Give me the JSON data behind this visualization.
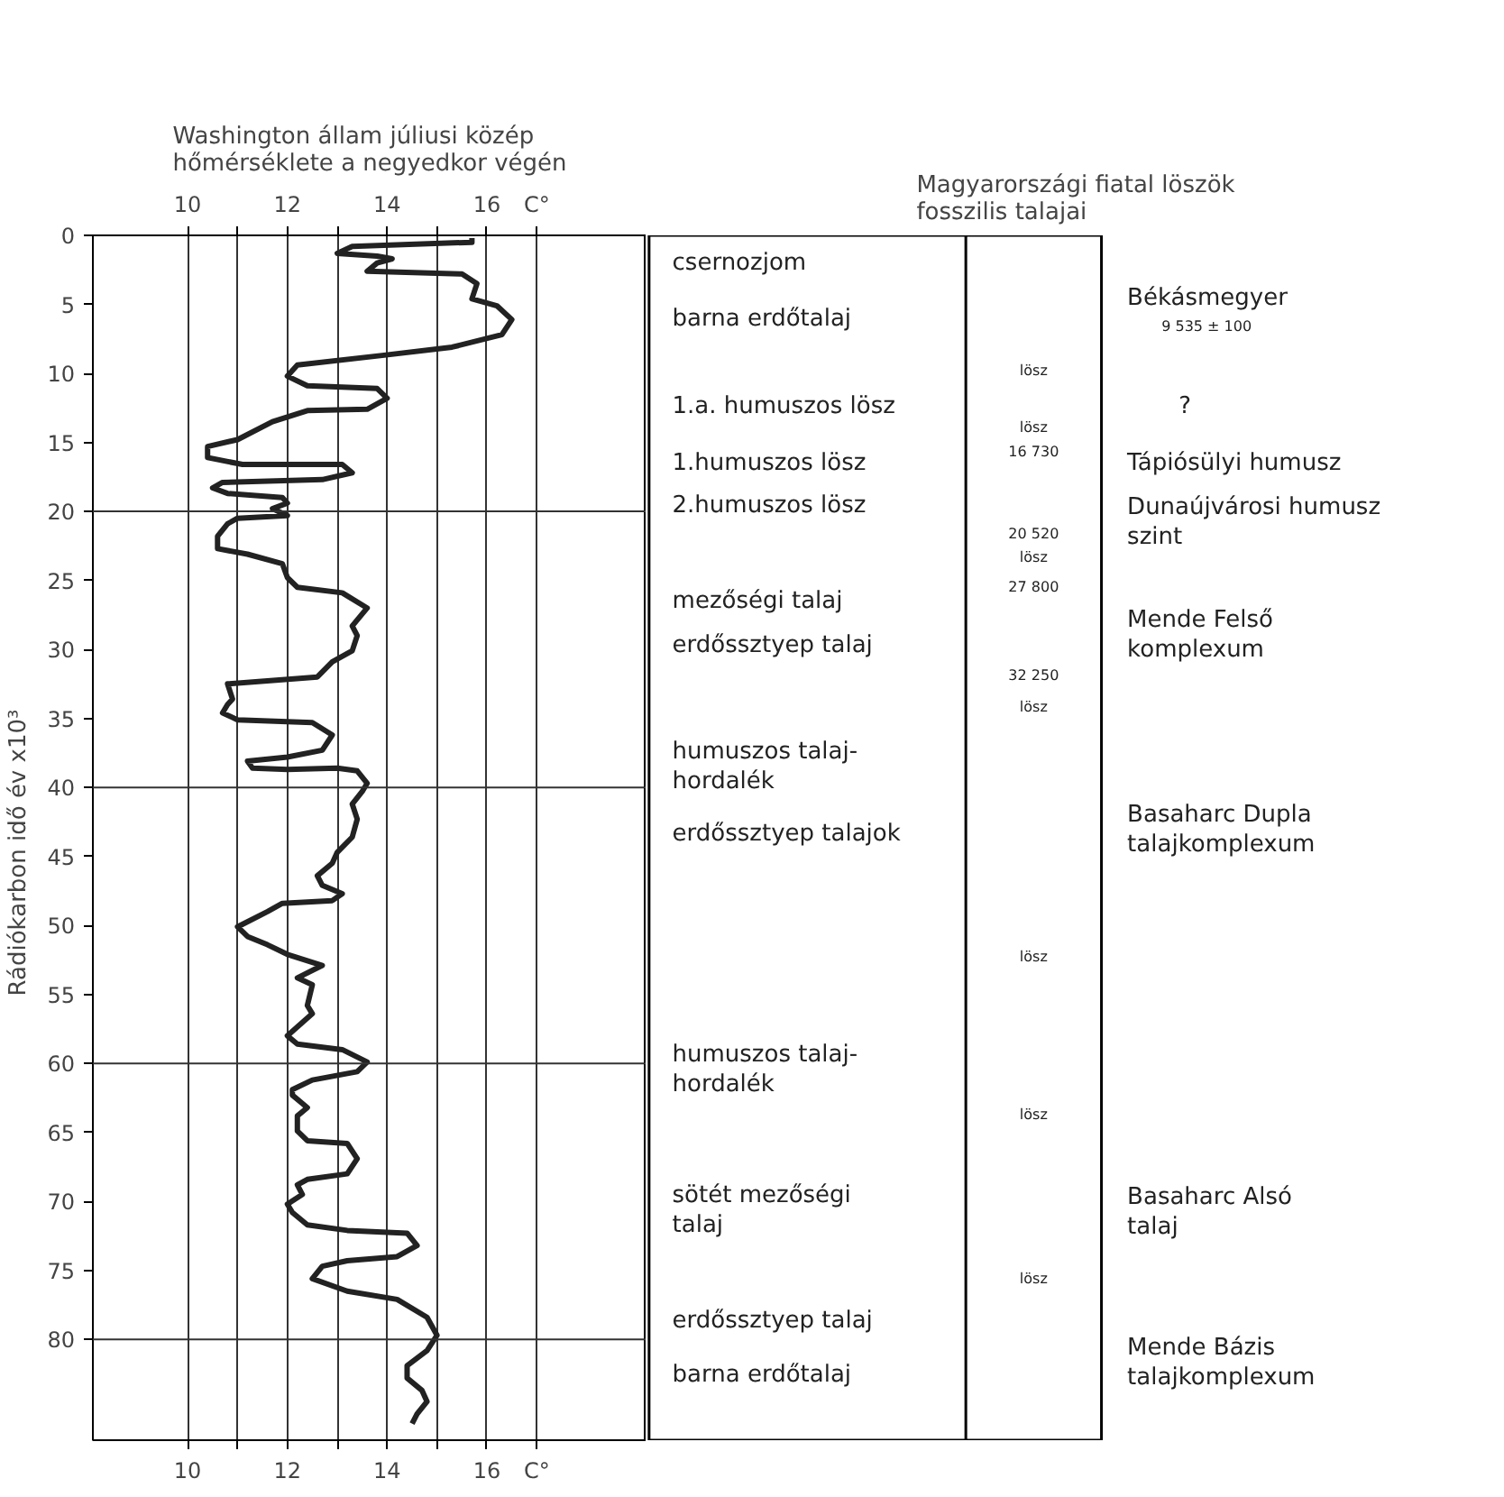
{
  "chart_data": [
    {
      "type": "line",
      "title": "Washington állam júliusi közép\nhőmérséklete a negyedkor végén",
      "ylabel": "Rádiókarbon idő     év x10³",
      "xlim": [
        8.1,
        19.2
      ],
      "ylim": [
        87.3,
        0
      ],
      "xticks": [
        10,
        {
          "value": 11,
          "label": null
        },
        12,
        {
          "value": 13,
          "label": null
        },
        14,
        {
          "value": 15,
          "label": null
        },
        16,
        {
          "value": 17,
          "label": "C°"
        }
      ],
      "x2lim": [
        8.1,
        19.2
      ],
      "x2ticks": [
        10,
        {
          "value": 11,
          "label": null
        },
        12,
        {
          "value": 13,
          "label": null
        },
        14,
        {
          "value": 15,
          "label": null
        },
        16,
        {
          "value": 17,
          "label": "C°"
        }
      ],
      "yticks": [
        0,
        5,
        10,
        15,
        20,
        25,
        30,
        35,
        40,
        45,
        50,
        55,
        60,
        65,
        70,
        75,
        80
      ],
      "grid": "x",
      "ref_lines": [
        {
          "axis": "y",
          "value": 20
        },
        {
          "axis": "y",
          "value": 40
        },
        {
          "axis": "y",
          "value": 60
        },
        {
          "axis": "y",
          "value": 80
        }
      ],
      "series": [
        {
          "color": "#222222",
          "x": [
            15.7,
            15.7,
            13.3,
            13.0,
            13.8,
            14.1,
            13.8,
            13.6,
            15.5,
            15.8,
            15.7,
            16.2,
            16.5,
            16.3,
            15.3,
            13.9,
            12.2,
            12.0,
            12.4,
            13.8,
            14.0,
            13.6,
            12.4,
            11.7,
            11.0,
            10.4,
            10.4,
            11.1,
            13.1,
            13.3,
            12.7,
            10.7,
            10.5,
            10.8,
            11.9,
            12.0,
            11.7,
            12.0,
            11.0,
            10.8,
            10.6,
            10.6,
            11.2,
            11.9,
            12.0,
            12.2,
            13.1,
            13.6,
            13.3,
            13.4,
            13.3,
            12.9,
            12.6,
            10.8,
            10.9,
            10.8,
            10.7,
            11.0,
            12.5,
            12.9,
            12.7,
            12.0,
            11.2,
            11.3,
            12.0,
            13.0,
            13.4,
            13.6,
            13.5,
            13.3,
            13.4,
            13.3,
            13.0,
            12.9,
            12.6,
            12.7,
            13.1,
            12.9,
            11.9,
            11.6,
            11.0,
            11.2,
            11.6,
            12.0,
            12.7,
            12.2,
            12.5,
            12.4,
            12.5,
            12.0,
            12.2,
            13.1,
            13.6,
            13.4,
            12.5,
            12.1,
            12.1,
            12.4,
            12.2,
            12.2,
            12.4,
            13.2,
            13.4,
            13.2,
            12.4,
            12.2,
            12.3,
            12.0,
            12.1,
            12.4,
            13.2,
            14.4,
            14.6,
            14.2,
            13.2,
            12.7,
            12.5,
            13.2,
            14.2,
            14.8,
            15.0,
            14.8,
            14.4,
            14.4,
            14.7,
            14.8,
            14.6,
            14.5
          ],
          "values": [
            0.2,
            0.5,
            0.8,
            1.3,
            1.5,
            1.7,
            2.0,
            2.6,
            2.8,
            3.5,
            4.6,
            5.1,
            6.1,
            7.2,
            8.1,
            8.7,
            9.4,
            10.2,
            10.9,
            11.1,
            11.8,
            12.6,
            12.7,
            13.5,
            14.8,
            15.3,
            16.1,
            16.6,
            16.6,
            17.2,
            17.7,
            17.9,
            18.3,
            18.7,
            19.0,
            19.4,
            19.8,
            20.3,
            20.5,
            20.9,
            21.8,
            22.7,
            23.1,
            23.8,
            24.8,
            25.5,
            25.9,
            27.0,
            28.3,
            29.0,
            30.1,
            30.9,
            32.0,
            32.5,
            33.6,
            34.0,
            34.6,
            35.1,
            35.3,
            36.2,
            37.3,
            37.8,
            38.1,
            38.6,
            38.7,
            38.6,
            38.8,
            39.7,
            40.3,
            41.2,
            42.3,
            43.6,
            44.7,
            45.5,
            46.4,
            47.1,
            47.7,
            48.2,
            48.4,
            49.0,
            50.1,
            50.8,
            51.4,
            52.1,
            52.9,
            53.8,
            54.3,
            55.8,
            56.4,
            58.0,
            58.6,
            59.0,
            59.9,
            60.6,
            61.2,
            61.9,
            62.3,
            63.2,
            63.8,
            64.9,
            65.6,
            65.8,
            66.9,
            68.0,
            68.4,
            68.8,
            69.5,
            70.2,
            70.8,
            71.7,
            72.1,
            72.3,
            73.2,
            74.0,
            74.3,
            74.7,
            75.6,
            76.5,
            77.1,
            78.4,
            79.7,
            80.8,
            81.9,
            82.8,
            83.7,
            84.5,
            85.4,
            86.1
          ]
        }
      ]
    },
    {
      "type": "other",
      "title": "Magyarországi fiatal löszök\nfosszilis talajai",
      "annotations": [
        "csernozjom",
        "barna erdőtalaj",
        "1.a. humuszos lösz",
        "1.humuszos lösz",
        "2.humuszos lösz",
        "mezőségi talaj",
        "erdőssztyep talaj",
        "humuszos talaj-\n    hordalék",
        "erdőssztyep talajok",
        "humuszos talaj-\n    hordalék",
        "sötét mezőségi\n    talaj",
        "erdőssztyep talaj",
        "barna erdőtalaj",
        "lösz",
        "lösz",
        "16 730",
        "20 520",
        "lösz",
        "27 800",
        "32 250",
        "lösz",
        "lösz",
        "lösz",
        "lösz",
        "Békásmegyer",
        "9 535 ± 100",
        "?",
        "Tápiósülyi humusz",
        "Dunaújvárosi humusz\n                    szint",
        "Mende Felső\n    komplexum",
        "Basaharc Dupla\ntalajkomplexum",
        "Basaharc Alsó\n    talaj",
        "Mende Bázis\ntalajkomplexum"
      ]
    }
  ]
}
